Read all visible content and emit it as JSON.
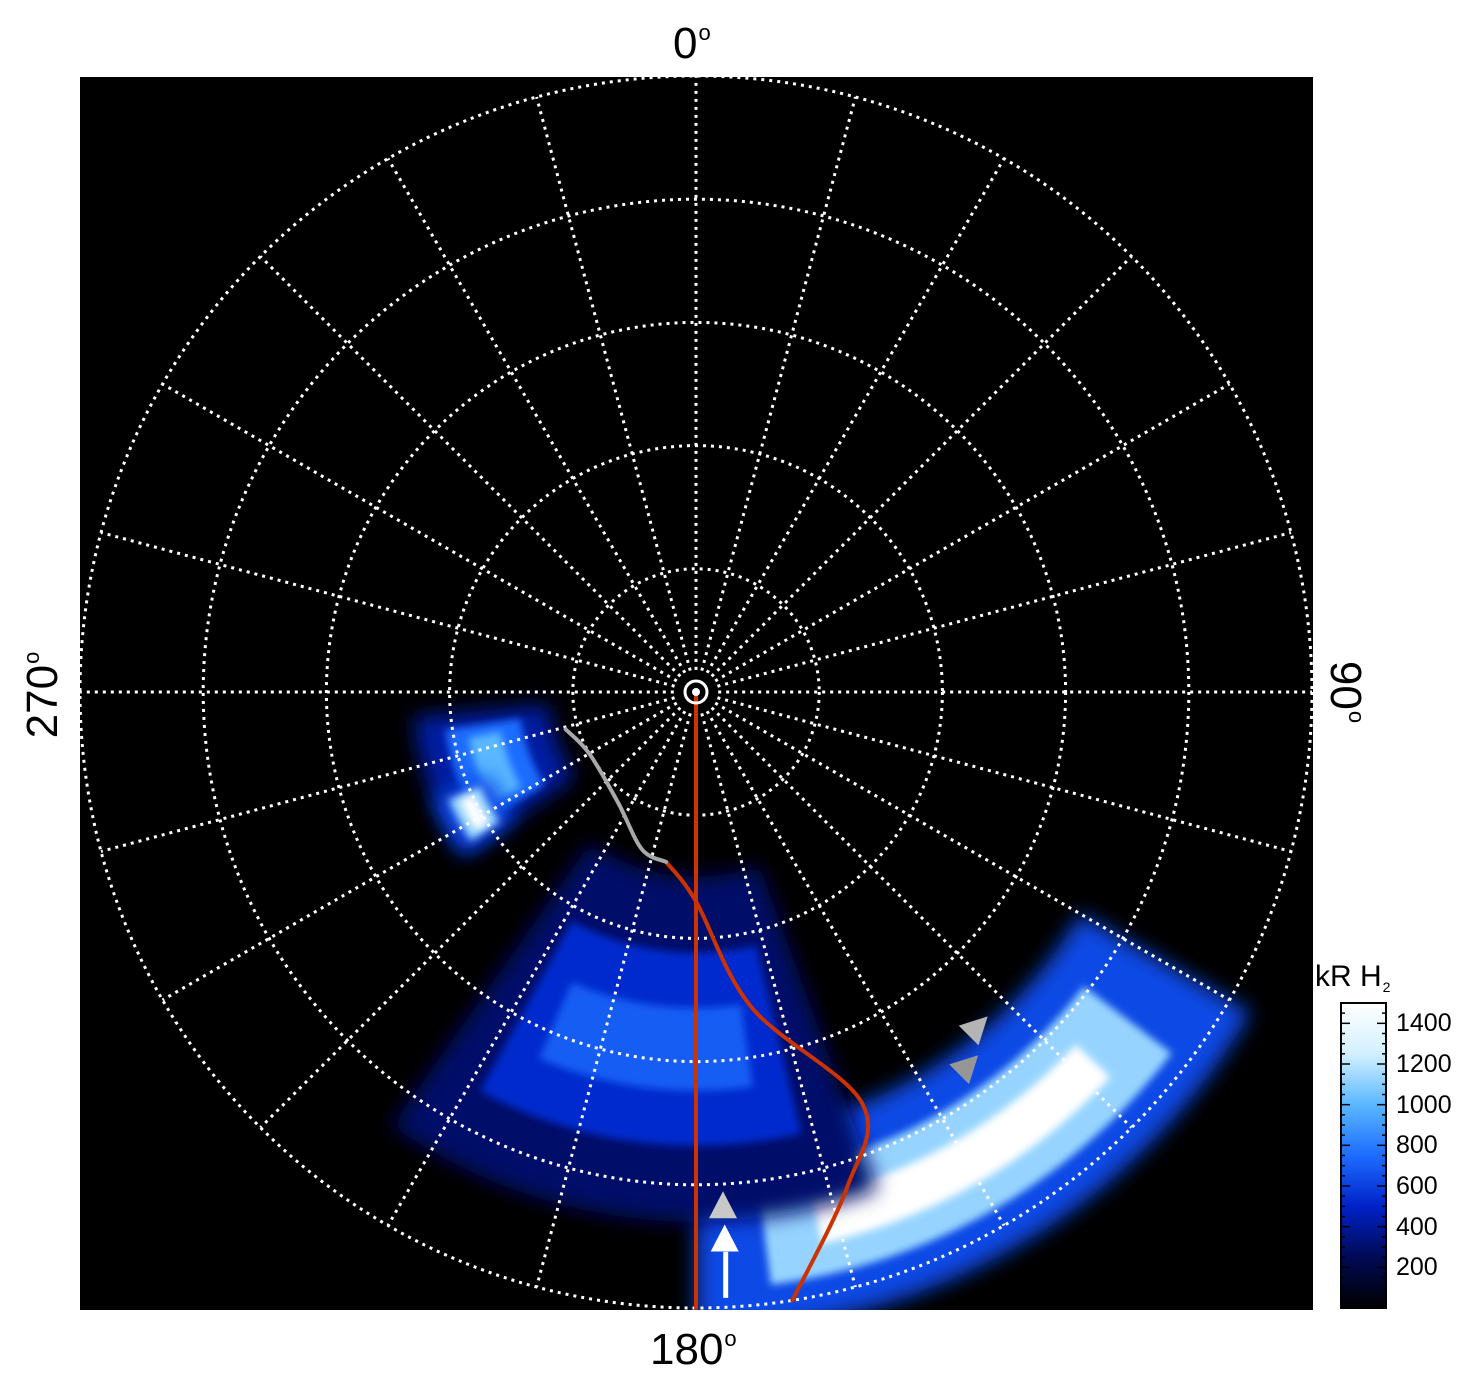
{
  "chart_data": {
    "type": "heatmap",
    "projection": "polar",
    "background": "#000000",
    "azimuth_labels": [
      {
        "angle": 0,
        "text": "0",
        "unit": "o"
      },
      {
        "angle": 90,
        "text": "90",
        "unit": "o"
      },
      {
        "angle": 180,
        "text": "180",
        "unit": "o"
      },
      {
        "angle": 270,
        "text": "270",
        "unit": "o"
      }
    ],
    "grid": {
      "style": "dotted",
      "color": "#ffffff",
      "meridian_step_deg": 15,
      "ring_count": 5
    },
    "colorbar": {
      "title": "kR H",
      "title_subscript": "2",
      "ticks": [
        200,
        400,
        600,
        800,
        1000,
        1200,
        1400
      ],
      "range": [
        0,
        1500
      ],
      "colors": [
        "#000000",
        "#000a55",
        "#0022c8",
        "#1e6cff",
        "#5ab8ff",
        "#d2f0ff",
        "#ffffff"
      ]
    },
    "emission_regions": [
      {
        "name": "main-oval-arc",
        "peak_kR": 1500,
        "colat_range": [
          3.6,
          5.2
        ],
        "lon_range": [
          120,
          180
        ]
      },
      {
        "name": "oval-trail",
        "peak_kR": 700,
        "colat_range": [
          1.5,
          4.3
        ],
        "lon_range": [
          160,
          215
        ]
      },
      {
        "name": "polar-blob",
        "peak_kR": 1000,
        "colat_range": [
          1.2,
          2.3
        ],
        "lon_range": [
          235,
          265
        ]
      },
      {
        "name": "bright-spot",
        "peak_kR": 1500,
        "colat_range": [
          1.8,
          2.3
        ],
        "lon_range": [
          235,
          248
        ]
      }
    ],
    "traces": [
      {
        "color": "#cc3300",
        "points": [
          [
            0,
            180
          ],
          [
            5,
            180
          ]
        ]
      },
      {
        "color": "#cc3300",
        "points": [
          [
            1.4,
            190
          ],
          [
            1.7,
            180
          ],
          [
            2.6,
            170
          ],
          [
            3.6,
            158
          ],
          [
            4.2,
            163
          ],
          [
            5.0,
            171
          ]
        ]
      },
      {
        "color": "#a8a8a8",
        "points": [
          [
            1.1,
            254
          ],
          [
            1.0,
            240
          ],
          [
            1.1,
            215
          ],
          [
            1.35,
            199
          ],
          [
            1.4,
            190
          ]
        ]
      }
    ],
    "markers": [
      {
        "color": "#c8c8c8",
        "colat": 4.18,
        "lon": 177,
        "heading": 0
      },
      {
        "color": "#ffffff",
        "colat": 4.45,
        "lon": 177,
        "heading": 0
      },
      {
        "color": "#ffffff",
        "colat": 4.6,
        "lon": 177,
        "heading": 0,
        "shape": "stem"
      },
      {
        "color": "#b4b4b4",
        "colat": 3.55,
        "lon": 140,
        "heading": 45
      },
      {
        "color": "#969696",
        "colat": 3.75,
        "lon": 144,
        "heading": 45
      }
    ]
  }
}
